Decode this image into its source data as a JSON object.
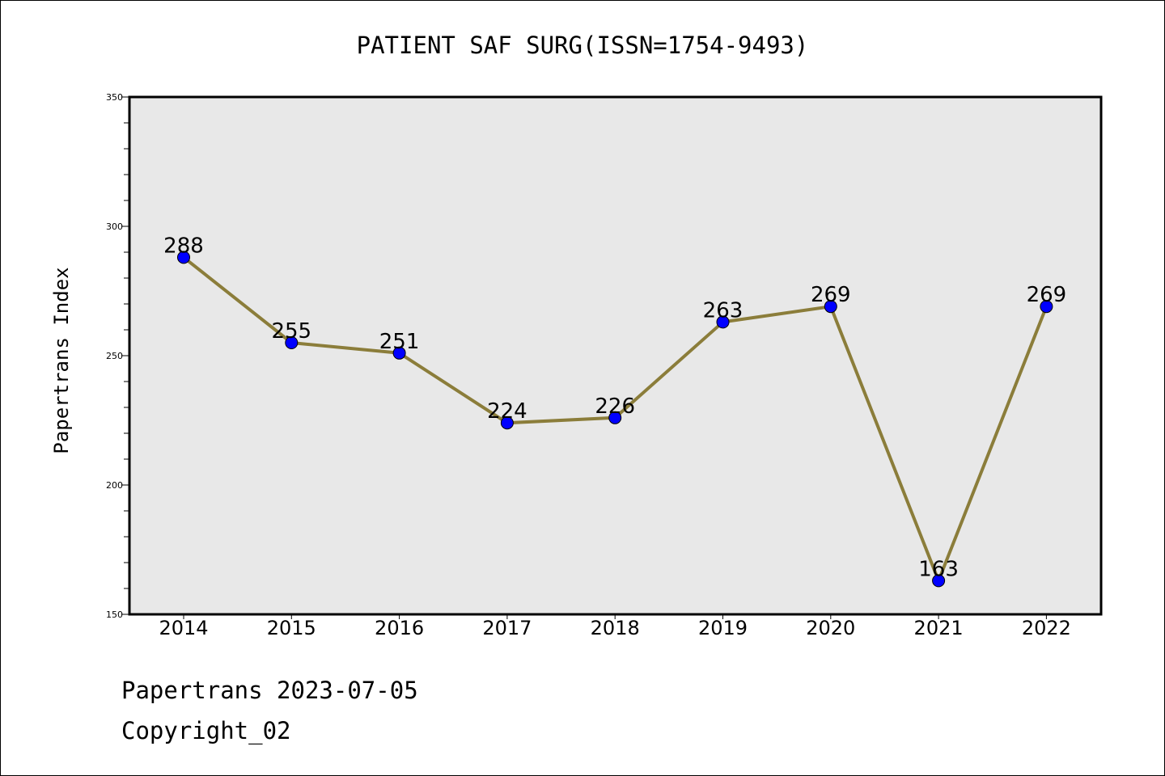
{
  "chart_data": {
    "type": "line",
    "title": "PATIENT SAF SURG(ISSN=1754-9493)",
    "xlabel": "",
    "ylabel": "Papertrans Index",
    "categories": [
      "2014",
      "2015",
      "2016",
      "2017",
      "2018",
      "2019",
      "2020",
      "2021",
      "2022"
    ],
    "values": [
      288,
      255,
      251,
      224,
      226,
      263,
      269,
      163,
      269
    ],
    "data_labels": [
      "288",
      "255",
      "251",
      "224",
      "226",
      "263",
      "269",
      "163",
      "269"
    ],
    "ylim": [
      150,
      350
    ],
    "yticks": [
      "150",
      "200",
      "250",
      "300",
      "350"
    ],
    "grid": false,
    "legend": "none",
    "colors": {
      "line": "#8B7D3A",
      "marker": "#0000FF",
      "plot_bg": "#E8E8E8"
    }
  },
  "footer": {
    "line1": "Papertrans 2023-07-05",
    "line2": "Copyright_02"
  }
}
